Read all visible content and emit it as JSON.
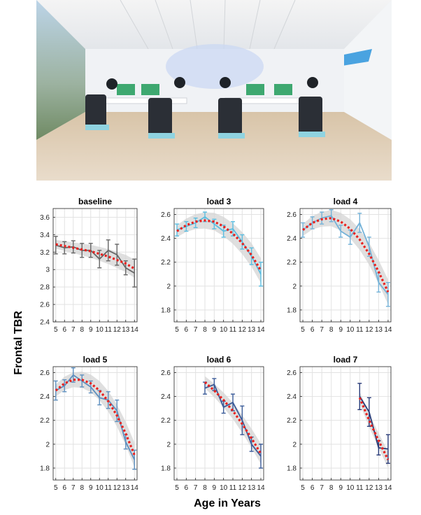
{
  "figure": {
    "ylabel": "Frontal TBR",
    "xlabel": "Age in Years"
  },
  "photo": {
    "description_icon": "classroom-photo-icon"
  },
  "colors": {
    "fit": "#e8211f",
    "band": "#d4d4d4",
    "grid": "#e2e2e2",
    "baseline": "#666666",
    "load3": "#5bbde0",
    "load4": "#74b2d8",
    "load5": "#5d8fbf",
    "load6": "#3a5b98",
    "load7": "#283a77"
  },
  "chart_data": [
    {
      "type": "line",
      "title": "baseline",
      "x": [
        5,
        6,
        7,
        8,
        9,
        10,
        11,
        12,
        13,
        14
      ],
      "xticks": [
        "5",
        "6",
        "7",
        "8",
        "9",
        "10",
        "11",
        "12",
        "13",
        "14"
      ],
      "yticks": [
        "2.4",
        "2.6",
        "2.8",
        "3",
        "3.2",
        "3.4",
        "3.6"
      ],
      "ylim": [
        2.4,
        3.7
      ],
      "series": [
        {
          "values": [
            3.28,
            3.25,
            3.26,
            3.22,
            3.22,
            3.12,
            3.22,
            3.17,
            3.02,
            2.96
          ],
          "err": [
            0.1,
            0.07,
            0.07,
            0.08,
            0.08,
            0.1,
            0.12,
            0.12,
            0.08,
            0.16
          ]
        }
      ],
      "fit": [
        3.29,
        3.27,
        3.25,
        3.23,
        3.21,
        3.18,
        3.15,
        3.11,
        3.07,
        3.01
      ],
      "grid": true
    },
    {
      "type": "line",
      "title": "load 3",
      "x": [
        5,
        6,
        7,
        8,
        9,
        10,
        11,
        12,
        13,
        14
      ],
      "xticks": [
        "5",
        "6",
        "7",
        "8",
        "9",
        "10",
        "11",
        "12",
        "13",
        "14"
      ],
      "yticks": [
        "1.8",
        "2",
        "2.2",
        "2.4",
        "2.6"
      ],
      "ylim": [
        1.7,
        2.65
      ],
      "series": [
        {
          "values": [
            2.47,
            2.5,
            2.53,
            2.58,
            2.52,
            2.46,
            2.48,
            2.37,
            2.25,
            2.1
          ],
          "err": [
            0.05,
            0.04,
            0.04,
            0.04,
            0.04,
            0.05,
            0.06,
            0.06,
            0.07,
            0.1
          ]
        }
      ],
      "fit": [
        2.46,
        2.51,
        2.54,
        2.55,
        2.54,
        2.5,
        2.44,
        2.36,
        2.26,
        2.13
      ],
      "grid": true
    },
    {
      "type": "line",
      "title": "load 4",
      "x": [
        5,
        6,
        7,
        8,
        9,
        10,
        11,
        12,
        13,
        14
      ],
      "xticks": [
        "5",
        "6",
        "7",
        "8",
        "9",
        "10",
        "11",
        "12",
        "13",
        "14"
      ],
      "yticks": [
        "1.8",
        "2",
        "2.2",
        "2.4",
        "2.6"
      ],
      "ylim": [
        1.7,
        2.65
      ],
      "series": [
        {
          "values": [
            2.47,
            2.53,
            2.57,
            2.59,
            2.46,
            2.41,
            2.53,
            2.33,
            2.03,
            1.93
          ],
          "err": [
            0.06,
            0.05,
            0.05,
            0.05,
            0.05,
            0.06,
            0.08,
            0.08,
            0.08,
            0.1
          ]
        }
      ],
      "fit": [
        2.47,
        2.53,
        2.56,
        2.57,
        2.54,
        2.48,
        2.39,
        2.27,
        2.12,
        1.95
      ],
      "grid": true
    },
    {
      "type": "line",
      "title": "load 5",
      "x": [
        5,
        6,
        7,
        8,
        9,
        10,
        11,
        12,
        13,
        14
      ],
      "xticks": [
        "5",
        "6",
        "7",
        "8",
        "9",
        "10",
        "11",
        "12",
        "13",
        "14"
      ],
      "yticks": [
        "1.8",
        "2",
        "2.2",
        "2.4",
        "2.6"
      ],
      "ylim": [
        1.7,
        2.65
      ],
      "series": [
        {
          "values": [
            2.45,
            2.49,
            2.58,
            2.53,
            2.48,
            2.39,
            2.37,
            2.28,
            2.02,
            1.87
          ],
          "err": [
            0.08,
            0.05,
            0.06,
            0.05,
            0.05,
            0.06,
            0.07,
            0.09,
            0.06,
            0.08
          ]
        }
      ],
      "fit": [
        2.45,
        2.51,
        2.54,
        2.54,
        2.51,
        2.45,
        2.36,
        2.24,
        2.09,
        1.91
      ],
      "grid": true
    },
    {
      "type": "line",
      "title": "load 6",
      "x": [
        8,
        9,
        10,
        11,
        12,
        13,
        14
      ],
      "xticks": [
        "5",
        "6",
        "7",
        "8",
        "9",
        "10",
        "11",
        "12",
        "13",
        "14"
      ],
      "yticks": [
        "1.8",
        "2",
        "2.2",
        "2.4",
        "2.6"
      ],
      "ylim": [
        1.7,
        2.65
      ],
      "series": [
        {
          "values": [
            2.47,
            2.5,
            2.31,
            2.35,
            2.2,
            2.0,
            1.9
          ],
          "err": [
            0.05,
            0.05,
            0.05,
            0.07,
            0.12,
            0.06,
            0.1
          ]
        }
      ],
      "fit": [
        2.52,
        2.45,
        2.37,
        2.28,
        2.17,
        2.05,
        1.92
      ],
      "grid": true
    },
    {
      "type": "line",
      "title": "load 7",
      "x": [
        11,
        12,
        13,
        14
      ],
      "xticks": [
        "5",
        "6",
        "7",
        "8",
        "9",
        "10",
        "11",
        "12",
        "13",
        "14"
      ],
      "yticks": [
        "1.8",
        "2",
        "2.2",
        "2.4",
        "2.6"
      ],
      "ylim": [
        1.7,
        2.65
      ],
      "series": [
        {
          "values": [
            2.4,
            2.27,
            1.97,
            1.96
          ],
          "err": [
            0.11,
            0.12,
            0.06,
            0.12
          ]
        }
      ],
      "fit": [
        2.39,
        2.2,
        2.03,
        1.87
      ],
      "grid": true
    }
  ]
}
